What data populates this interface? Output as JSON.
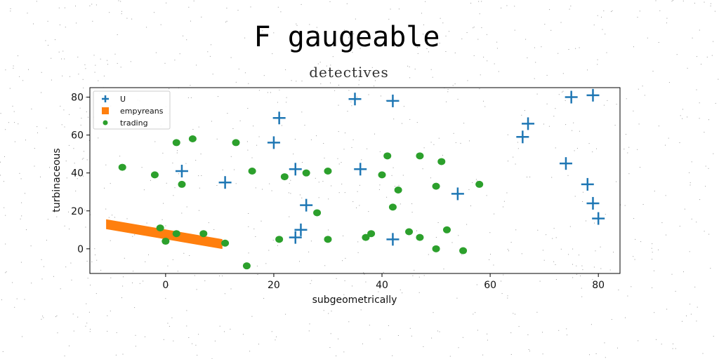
{
  "chart_data": {
    "type": "scatter",
    "title": "F gaugeable",
    "subtitle": "detectives",
    "xlabel": "subgeometrically",
    "ylabel": "turbinaceous",
    "xlim": [
      -14,
      84
    ],
    "ylim": [
      -13,
      85
    ],
    "xticks": [
      0,
      20,
      40,
      60,
      80
    ],
    "yticks": [
      0,
      20,
      40,
      60,
      80
    ],
    "grid": false,
    "legend_position": "top-left",
    "series": [
      {
        "name": "U",
        "marker": "plus",
        "color": "#1f77b4",
        "x": [
          35,
          42,
          75,
          79,
          21,
          20,
          67,
          66,
          3,
          24,
          36,
          11,
          74,
          78,
          79,
          80,
          26,
          54,
          25,
          24,
          42
        ],
        "y": [
          79,
          78,
          80,
          81,
          69,
          56,
          66,
          59,
          41,
          42,
          42,
          35,
          45,
          34,
          24,
          16,
          23,
          29,
          10,
          6,
          5
        ]
      },
      {
        "name": "empyreans",
        "marker": "band",
        "color": "#ff7f0e",
        "x": [
          -11,
          10.5
        ],
        "y": [
          13,
          2.5
        ]
      },
      {
        "name": "trading",
        "marker": "circle",
        "color": "#2ca02c",
        "x": [
          -8,
          -2,
          2,
          5,
          3,
          13,
          16,
          22,
          26,
          30,
          41,
          47,
          51,
          40,
          43,
          58,
          50,
          28,
          42,
          -1,
          2,
          7,
          0,
          11,
          21,
          30,
          38,
          37,
          45,
          47,
          52,
          50,
          55,
          15
        ],
        "y": [
          43,
          39,
          56,
          58,
          34,
          56,
          41,
          38,
          40,
          41,
          49,
          49,
          46,
          39,
          31,
          34,
          33,
          19,
          22,
          11,
          8,
          8,
          4,
          3,
          5,
          5,
          8,
          6,
          9,
          6,
          10,
          0,
          -1,
          -9
        ]
      }
    ]
  }
}
